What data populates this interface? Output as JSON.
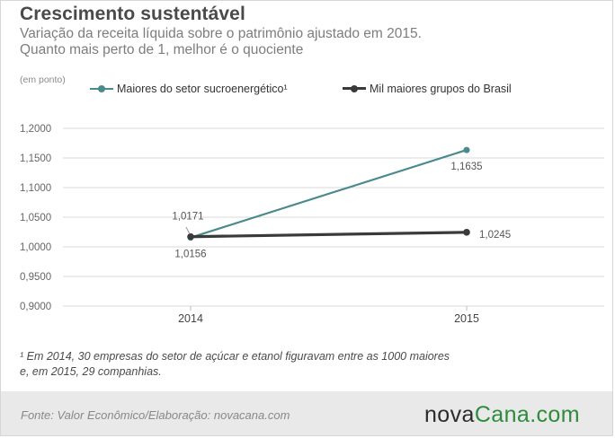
{
  "title": "Crescimento sustentável",
  "subtitle_line1": "Variação da receita líquida sobre o patrimônio ajustado em 2015.",
  "subtitle_line2": "Quanto mais perto de 1, melhor é o quociente",
  "unit_label": "(em ponto)",
  "footnote_line1": "¹ Em 2014, 30 empresas  do setor de açúcar e etanol figuravam entre as 1000 maiores",
  "footnote_line2": "e, em 2015, 29 companhias.",
  "source": "Fonte:  Valor  Econômico/Elaboração: novacana.com",
  "logo": {
    "part1": "nova",
    "part2": "Cana",
    "part3": ".com"
  },
  "colors": {
    "teal": "#4a8a8c",
    "dark": "#3a3a3a",
    "grid": "#d9d9d9",
    "axis_text": "#666666",
    "logo_accent": "#2e8b3a"
  },
  "chart_data": {
    "type": "line",
    "categories": [
      "2014",
      "2015"
    ],
    "ylim": [
      0.9,
      1.2
    ],
    "yticks": [
      0.9,
      0.95,
      1.0,
      1.05,
      1.1,
      1.15,
      1.2
    ],
    "ytick_labels": [
      "0,9000",
      "0,9500",
      "1,0000",
      "1,0500",
      "1,1000",
      "1,1500",
      "1,2000"
    ],
    "grid": true,
    "legend_position": "top",
    "series": [
      {
        "name": "Maiores do setor sucroenergético¹",
        "color": "#4a8a8c",
        "values": [
          1.0156,
          1.1635
        ],
        "labels": [
          "1,0156",
          "1,1635"
        ]
      },
      {
        "name": "Mil maiores grupos do Brasil",
        "color": "#3a3a3a",
        "values": [
          1.0171,
          1.0245
        ],
        "labels": [
          "1,0171",
          "1,0245"
        ]
      }
    ]
  }
}
